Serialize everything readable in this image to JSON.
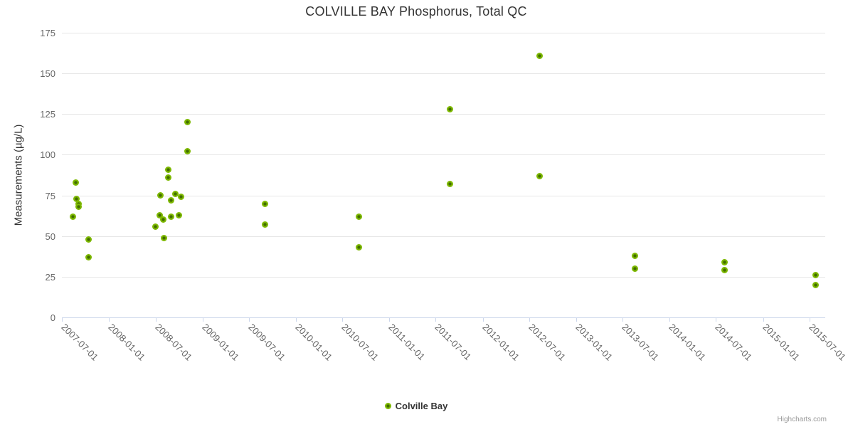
{
  "chart": {
    "credits_label": "Highcharts.com"
  },
  "chart_data": {
    "type": "scatter",
    "title": "COLVILLE BAY Phosphorus, Total QC",
    "xlabel": "",
    "ylabel": "Measurements (µg/L)",
    "ylim": [
      0,
      175
    ],
    "y_ticks": [
      0,
      25,
      50,
      75,
      100,
      125,
      150,
      175
    ],
    "x_range": [
      "2007-07-01",
      "2015-09-01"
    ],
    "x_ticks": [
      "2007-07-01",
      "2008-01-01",
      "2008-07-01",
      "2009-01-01",
      "2009-07-01",
      "2010-01-01",
      "2010-07-01",
      "2011-01-01",
      "2011-07-01",
      "2012-01-01",
      "2012-07-01",
      "2013-01-01",
      "2013-07-01",
      "2014-01-01",
      "2014-07-01",
      "2015-01-01",
      "2015-07-01"
    ],
    "grid": "horizontal",
    "legend_position": "bottom-center",
    "colors": {
      "marker": "#7db800",
      "marker_center": "#426d00",
      "grid": "#e6e6e6",
      "axis": "#ccd6eb",
      "title_text": "#333333",
      "label_text": "#666666"
    },
    "series": [
      {
        "name": "Colville Bay",
        "points": [
          {
            "x": "2007-08-14",
            "y": 62
          },
          {
            "x": "2007-08-25",
            "y": 83
          },
          {
            "x": "2007-08-28",
            "y": 73
          },
          {
            "x": "2007-09-05",
            "y": 70
          },
          {
            "x": "2007-09-05",
            "y": 68
          },
          {
            "x": "2007-10-12",
            "y": 37
          },
          {
            "x": "2007-10-14",
            "y": 48
          },
          {
            "x": "2008-07-01",
            "y": 56
          },
          {
            "x": "2008-07-16",
            "y": 63
          },
          {
            "x": "2008-07-19",
            "y": 75
          },
          {
            "x": "2008-07-31",
            "y": 60
          },
          {
            "x": "2008-08-03",
            "y": 49
          },
          {
            "x": "2008-08-19",
            "y": 91
          },
          {
            "x": "2008-08-19",
            "y": 86
          },
          {
            "x": "2008-09-01",
            "y": 72
          },
          {
            "x": "2008-09-01",
            "y": 62
          },
          {
            "x": "2008-09-17",
            "y": 76
          },
          {
            "x": "2008-10-01",
            "y": 63
          },
          {
            "x": "2008-10-09",
            "y": 74
          },
          {
            "x": "2008-11-03",
            "y": 120
          },
          {
            "x": "2008-11-03",
            "y": 102
          },
          {
            "x": "2009-09-03",
            "y": 70
          },
          {
            "x": "2009-09-03",
            "y": 57
          },
          {
            "x": "2010-09-03",
            "y": 62
          },
          {
            "x": "2010-09-03",
            "y": 43
          },
          {
            "x": "2011-08-25",
            "y": 128
          },
          {
            "x": "2011-08-25",
            "y": 82
          },
          {
            "x": "2012-08-11",
            "y": 161
          },
          {
            "x": "2012-08-11",
            "y": 87
          },
          {
            "x": "2013-08-18",
            "y": 38
          },
          {
            "x": "2013-08-18",
            "y": 30
          },
          {
            "x": "2014-08-04",
            "y": 34
          },
          {
            "x": "2014-08-04",
            "y": 29
          },
          {
            "x": "2015-07-26",
            "y": 26
          },
          {
            "x": "2015-07-26",
            "y": 20
          }
        ]
      }
    ]
  }
}
